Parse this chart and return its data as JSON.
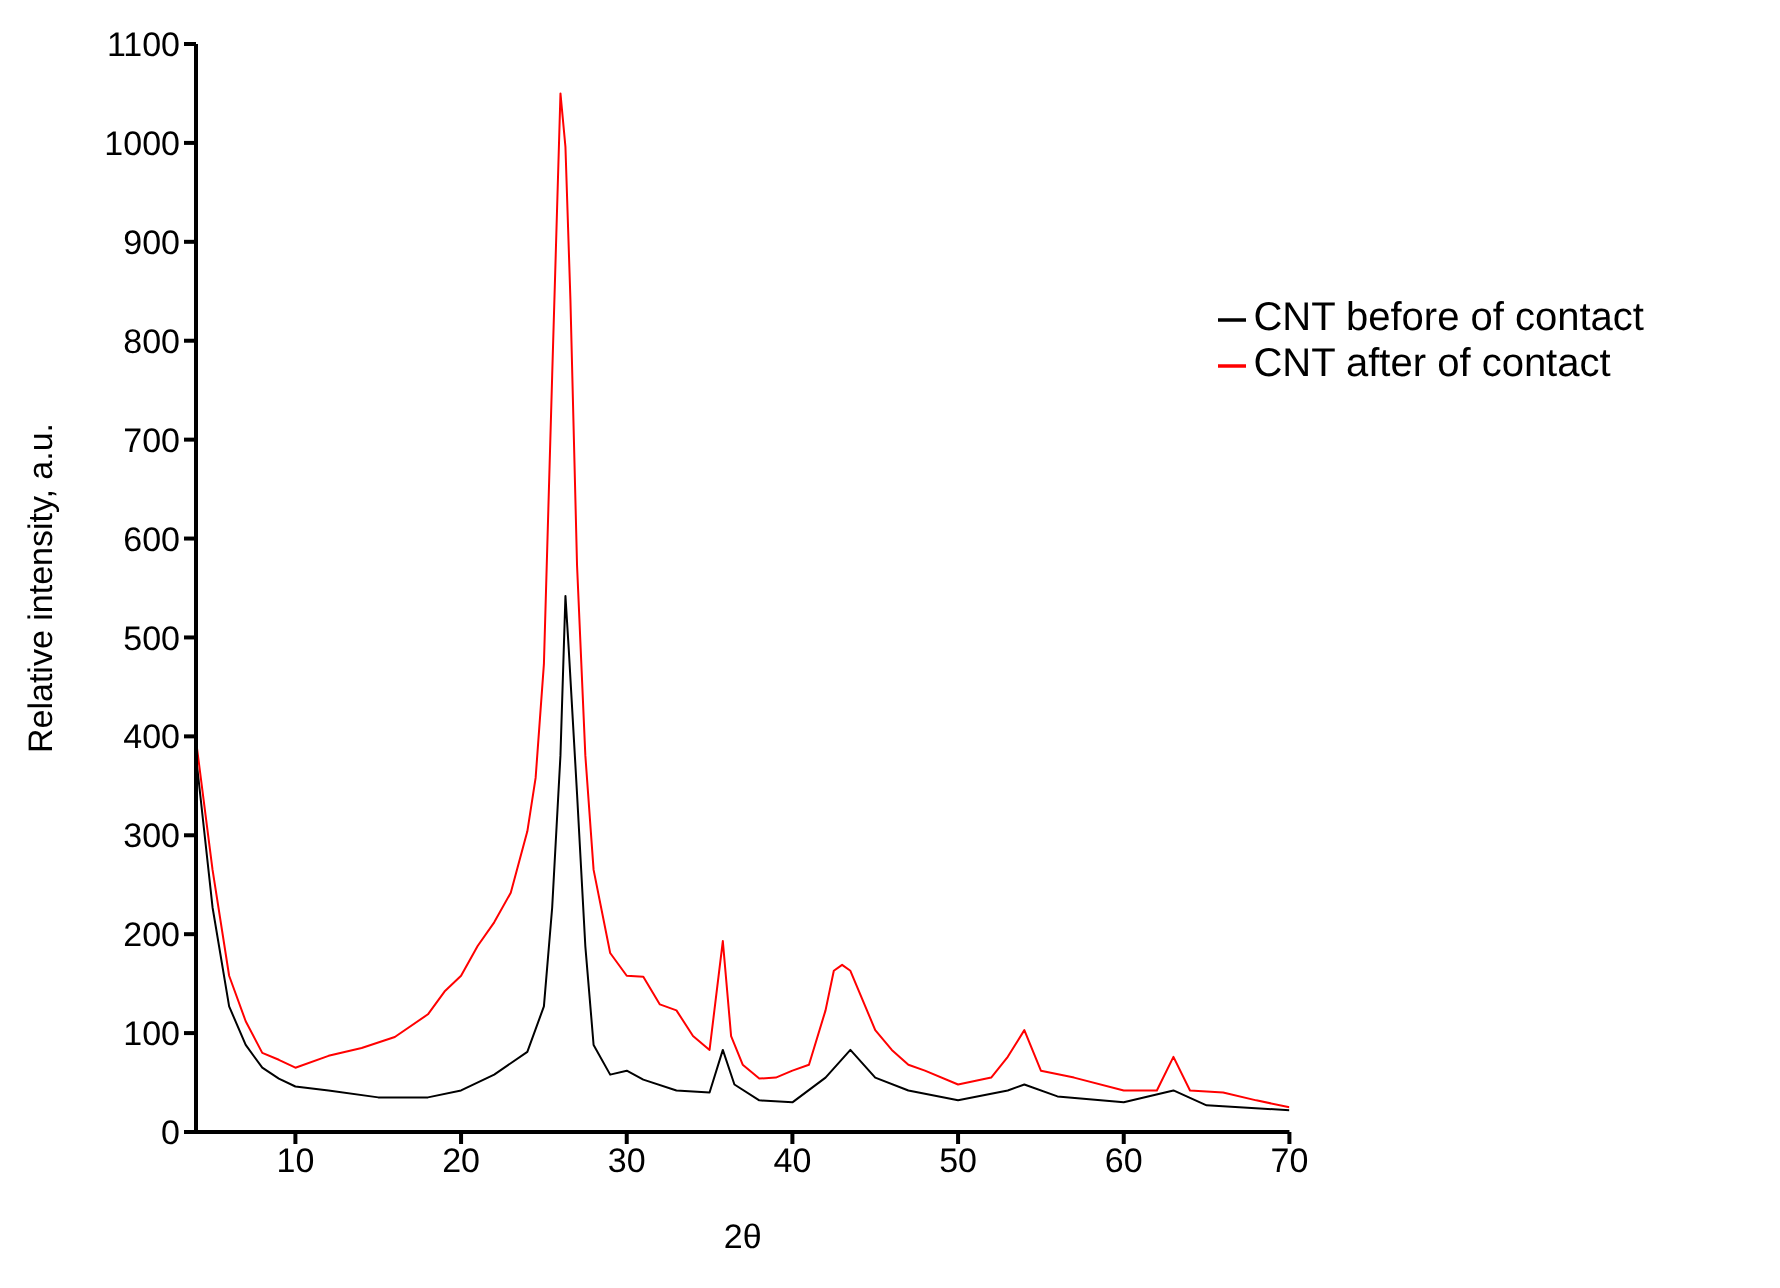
{
  "chart_data": {
    "type": "line",
    "xlabel": "2θ",
    "ylabel": "Relative intensity, a.u.",
    "xlim": [
      4,
      70
    ],
    "ylim": [
      0,
      1100
    ],
    "xticks": [
      10,
      20,
      30,
      40,
      50,
      60,
      70
    ],
    "yticks": [
      0,
      100,
      200,
      300,
      400,
      500,
      600,
      700,
      800,
      900,
      1000,
      1100
    ],
    "grid": false,
    "legend": "top right",
    "marker": "none",
    "line_style": "solid",
    "series": [
      {
        "name": "CNT before of contact",
        "color": "#000000",
        "x": [
          4,
          5,
          6,
          7,
          8,
          9,
          10,
          12,
          15,
          18,
          20,
          22,
          24,
          25,
          25.5,
          26,
          26.3,
          26.5,
          27,
          27.5,
          28,
          29,
          30,
          31,
          33,
          35,
          35.8,
          36.5,
          38,
          40,
          42,
          43.5,
          45,
          47,
          50,
          53,
          54,
          56,
          60,
          63,
          65,
          70
        ],
        "values": [
          380,
          227,
          127,
          88,
          65,
          54,
          46,
          42,
          35,
          35,
          42,
          58,
          81,
          127,
          227,
          381,
          542,
          488,
          342,
          188,
          88,
          58,
          62,
          53,
          42,
          40,
          83,
          48,
          32,
          30,
          55,
          83,
          55,
          42,
          32,
          42,
          48,
          36,
          30,
          42,
          27,
          22
        ]
      },
      {
        "name": "CNT after of contact",
        "color": "#ff0000",
        "x": [
          4,
          5,
          6,
          7,
          8,
          9,
          10,
          12,
          14,
          16,
          18,
          19,
          20,
          21,
          22,
          23,
          24,
          24.5,
          25,
          25.5,
          26,
          26.3,
          26.6,
          27,
          27.5,
          28,
          29,
          30,
          31,
          32,
          33,
          34,
          35,
          35.8,
          36.3,
          37,
          38,
          39,
          40,
          41,
          42,
          42.5,
          43,
          43.5,
          44,
          45,
          46,
          47,
          48,
          50,
          52,
          53,
          54,
          55,
          57,
          60,
          62,
          63,
          64,
          66,
          68,
          70
        ],
        "values": [
          396,
          265,
          158,
          112,
          80,
          73,
          65,
          77,
          85,
          96,
          119,
          142,
          158,
          188,
          212,
          242,
          304,
          358,
          473,
          765,
          1050,
          996,
          842,
          573,
          381,
          265,
          181,
          158,
          157,
          129,
          123,
          97,
          83,
          193,
          97,
          68,
          54,
          55,
          62,
          68,
          123,
          163,
          169,
          163,
          143,
          103,
          83,
          68,
          62,
          48,
          55,
          76,
          103,
          62,
          55,
          42,
          42,
          76,
          42,
          40,
          32,
          25
        ]
      }
    ]
  }
}
